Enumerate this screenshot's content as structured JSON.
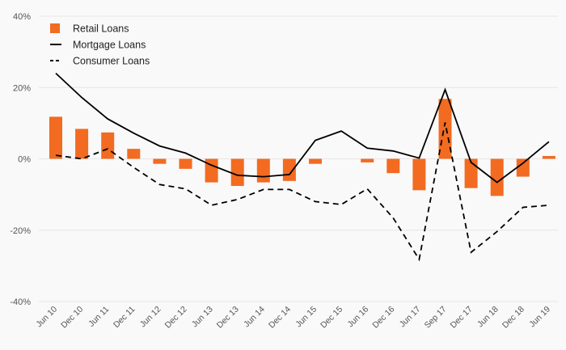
{
  "chart_data": {
    "type": "bar+line",
    "categories": [
      "Jun 10",
      "Dec 10",
      "Jun 11",
      "Dec 11",
      "Jun 12",
      "Dec 12",
      "Jun 13",
      "Dec 13",
      "Jun 14",
      "Dec 14",
      "Jun 15",
      "Dec 15",
      "Jun 16",
      "Dec 16",
      "Jun 17",
      "Sep 17",
      "Dec 17",
      "Jun 18",
      "Dec 18",
      "Jun 19"
    ],
    "ylim": [
      -40,
      40
    ],
    "yticks": [
      -40,
      -20,
      0,
      20,
      40
    ],
    "ytick_labels": [
      "-40%",
      "-20%",
      "0%",
      "20%",
      "40%"
    ],
    "grid": true,
    "legend_position": "top-left",
    "series": [
      {
        "name": "Retail Loans",
        "type": "bar",
        "color": "#f26b21",
        "values": [
          11.8,
          8.4,
          7.4,
          2.8,
          -1.4,
          -2.8,
          -6.6,
          -7.6,
          -6.6,
          -6.2,
          -1.4,
          0,
          -1.0,
          -4.0,
          -8.8,
          16.8,
          -8.2,
          -10.4,
          -5.0,
          0.8
        ]
      },
      {
        "name": "Mortgage Loans",
        "type": "line",
        "style": "solid",
        "color": "#000000",
        "values": [
          24,
          17.2,
          11.2,
          7.2,
          3.6,
          1.6,
          -1.8,
          -4.6,
          -5.0,
          -4.4,
          5.2,
          7.8,
          3.0,
          2.2,
          0.2,
          19.4,
          -1.0,
          -6.6,
          -1.2,
          4.8
        ]
      },
      {
        "name": "Consumer Loans",
        "type": "line",
        "style": "dashed",
        "color": "#000000",
        "values": [
          1.0,
          0.0,
          2.8,
          -2.4,
          -7.2,
          -8.4,
          -13.0,
          -11.4,
          -8.6,
          -8.6,
          -12.0,
          -12.8,
          -8.4,
          -16.6,
          -28.2,
          10.2,
          -26.2,
          -20.4,
          -13.6,
          -13.0
        ]
      }
    ]
  }
}
